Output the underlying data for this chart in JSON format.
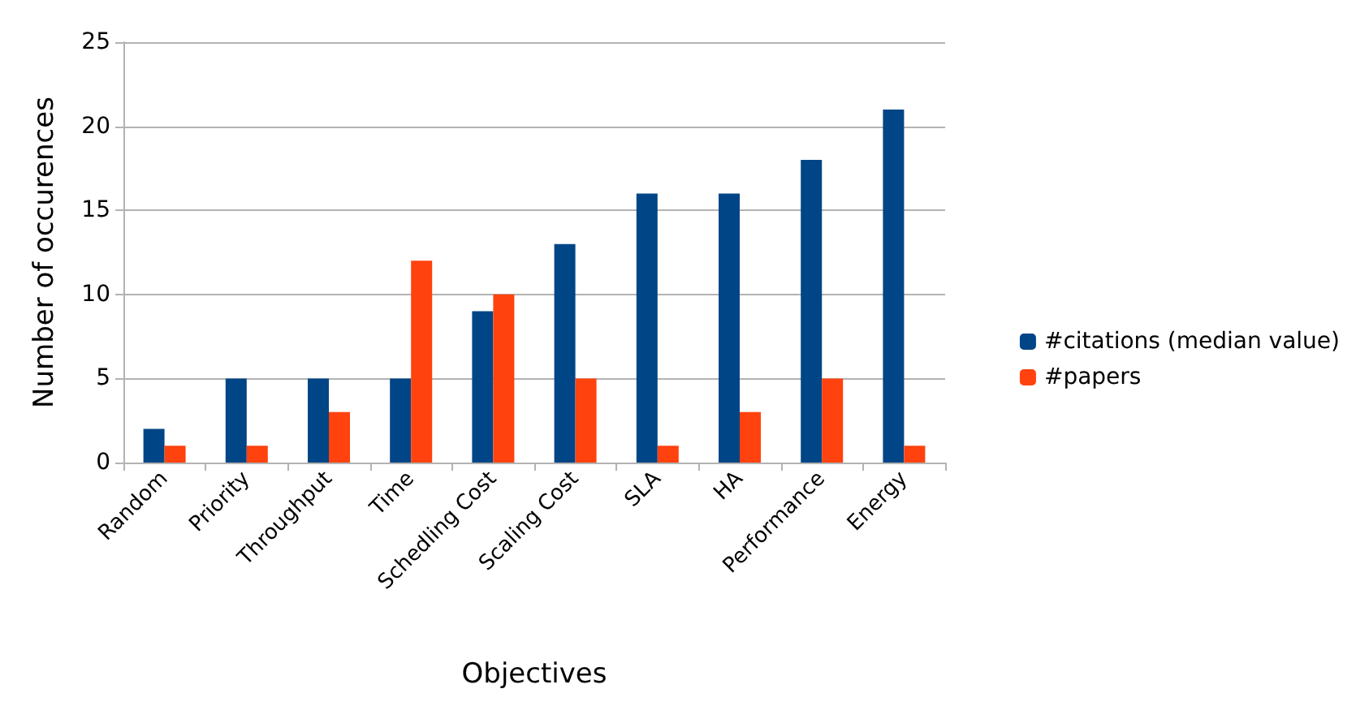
{
  "chart_data": {
    "type": "bar",
    "xlabel": "Objectives",
    "ylabel": "Number of occurences",
    "categories": [
      "Random",
      "Priority",
      "Throughput",
      "Time",
      "Schedling Cost",
      "Scaling Cost",
      "SLA",
      "HA",
      "Performance",
      "Energy"
    ],
    "series": [
      {
        "name": "#citations (median value)",
        "color": "#004586",
        "values": [
          2,
          5,
          5,
          5,
          9,
          13,
          16,
          16,
          18,
          21
        ]
      },
      {
        "name": "#papers",
        "color": "#ff420e",
        "values": [
          1,
          1,
          3,
          12,
          10,
          5,
          1,
          3,
          5,
          1
        ]
      }
    ],
    "ylim": [
      0,
      25
    ],
    "yticks": [
      0,
      5,
      10,
      15,
      20,
      25
    ],
    "grid": "y",
    "legend": "right"
  }
}
